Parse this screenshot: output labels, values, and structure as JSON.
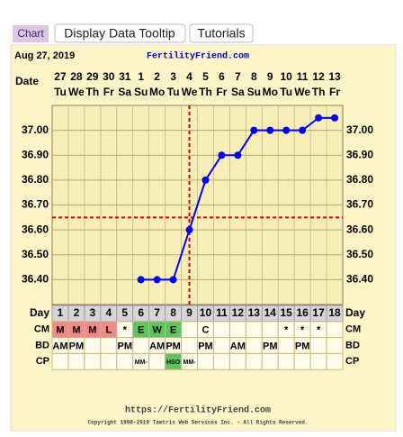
{
  "toolbar": {
    "tabs": [
      "Chart",
      "Display Data Tooltip",
      "Tutorials"
    ]
  },
  "chart_data": {
    "type": "line",
    "date_text": "Aug 27, 2019",
    "site": "FertilityFriend.com",
    "date_label": "Date",
    "categories": [
      "27",
      "28",
      "29",
      "30",
      "31",
      "1",
      "2",
      "3",
      "4",
      "5",
      "6",
      "7",
      "8",
      "9",
      "10",
      "11",
      "12",
      "13"
    ],
    "weekdays": [
      "Tu",
      "We",
      "Th",
      "Fr",
      "Sa",
      "Su",
      "Mo",
      "Tu",
      "We",
      "Th",
      "Fr",
      "Sa",
      "Su",
      "Mo",
      "Tu",
      "We",
      "Th",
      "Fr"
    ],
    "values": [
      null,
      null,
      null,
      null,
      null,
      36.4,
      36.4,
      36.4,
      36.6,
      36.8,
      36.9,
      36.9,
      37.0,
      37.0,
      37.0,
      37.0,
      37.05,
      37.05
    ],
    "color": "#0000ee",
    "ylim": [
      36.3,
      37.1
    ],
    "yticks": [
      {
        "value": 36.4,
        "label": "36.40"
      },
      {
        "value": 36.5,
        "label": "36.50"
      },
      {
        "value": 36.6,
        "label": "36.60"
      },
      {
        "value": 36.7,
        "label": "36.70"
      },
      {
        "value": 36.8,
        "label": "36.80"
      },
      {
        "value": 36.9,
        "label": "36.90"
      },
      {
        "value": 37.0,
        "label": "37.00"
      }
    ],
    "grid": true,
    "coverline": 36.65,
    "ovulation_day": 9,
    "marker_color": "#dd0000",
    "day_label": "Day",
    "days": [
      1,
      2,
      3,
      4,
      5,
      6,
      7,
      8,
      9,
      10,
      11,
      12,
      13,
      14,
      15,
      16,
      17,
      18
    ],
    "rows": [
      {
        "label": "CM",
        "cells": [
          "M",
          "M",
          "M",
          "L",
          "*",
          "E",
          "W",
          "E",
          null,
          "C",
          null,
          null,
          null,
          null,
          "*",
          "*",
          "*",
          null
        ],
        "colors": [
          "#f08a8a",
          "#f08a8a",
          "#f08a8a",
          "#f08a8a",
          null,
          "#5fc45f",
          "#5fc45f",
          "#5fc45f",
          null,
          null,
          null,
          null,
          null,
          null,
          null,
          null,
          null,
          null
        ]
      },
      {
        "label": "BD",
        "cells": [
          "AM",
          "PM",
          null,
          null,
          "PM",
          null,
          "AM",
          "PM",
          null,
          "PM",
          null,
          "AM",
          null,
          "PM",
          null,
          "PM",
          null,
          null
        ],
        "colors": []
      },
      {
        "label": "CP",
        "cells": [
          null,
          null,
          null,
          null,
          null,
          "MM-",
          null,
          "HSO",
          "MM-",
          null,
          null,
          null,
          null,
          null,
          null,
          null,
          null,
          null
        ],
        "colors": [
          null,
          null,
          null,
          null,
          null,
          null,
          null,
          "#5fc45f",
          null,
          null,
          null,
          null,
          null,
          null,
          null,
          null,
          null,
          null
        ]
      }
    ]
  },
  "footer": {
    "url": "https://FertilityFriend.com",
    "copyright": "Copyright 1998-2019 Tamtris Web Services Inc. - All Rights Reserved."
  }
}
